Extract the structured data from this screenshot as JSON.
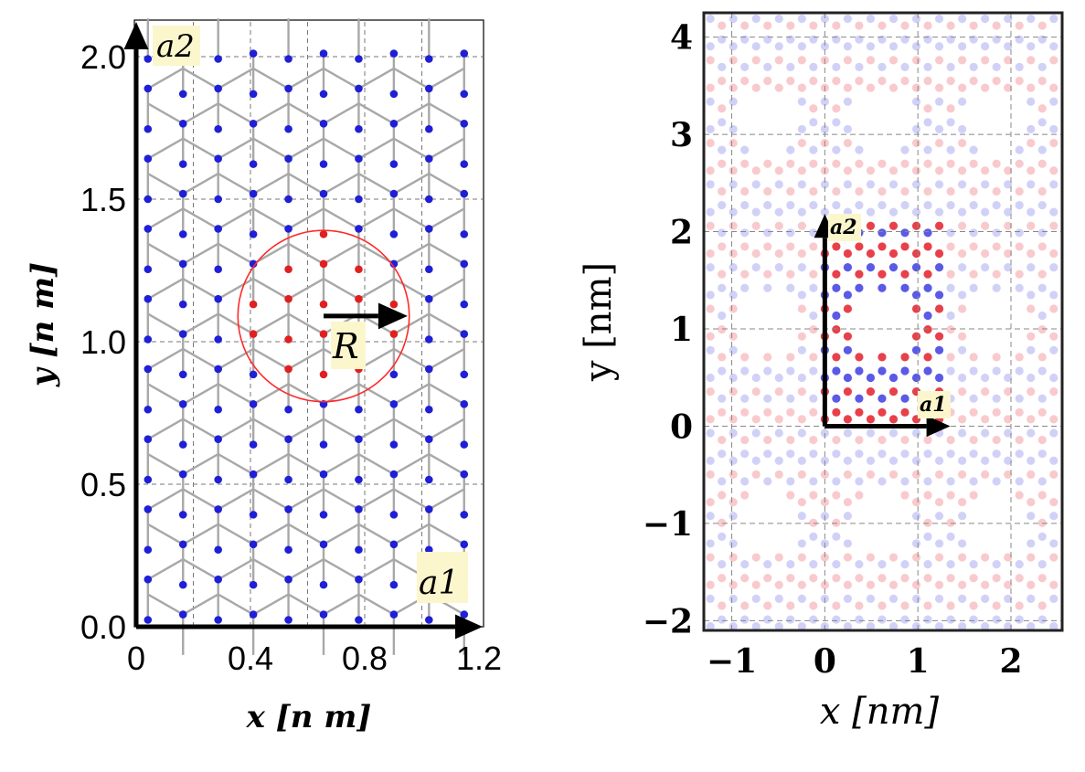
{
  "chart_data": [
    {
      "type": "scatter",
      "description_kind": "honeycomb-lattice",
      "xlabel": "x [n m]",
      "ylabel": "y [n m]",
      "xlim": [
        0,
        1.2
      ],
      "ylim": [
        0,
        2.05
      ],
      "xticks": [
        "0",
        "0.4",
        "0.8",
        "1.2"
      ],
      "yticks": [
        "0.0",
        "0.5",
        "1.0",
        "1.5",
        "2.0"
      ],
      "xtick_values": [
        0,
        0.4,
        0.8,
        1.2
      ],
      "ytick_values": [
        0,
        0.5,
        1.0,
        1.5,
        2.0
      ],
      "grid": true,
      "lattice": {
        "bond_length_nm": 0.142,
        "columns_x_nm": [
          0.041,
          0.164,
          0.287,
          0.41,
          0.533,
          0.656,
          0.779,
          0.902,
          1.025,
          1.148
        ],
        "row_spacing_nm": 0.246,
        "row_start_nm": 0.095
      },
      "vectors": [
        {
          "name": "a_1",
          "label": "a1",
          "from": [
            0,
            0
          ],
          "to": [
            1.2,
            0
          ]
        },
        {
          "name": "a_2",
          "label": "a2",
          "from": [
            0,
            0
          ],
          "to": [
            0,
            2.05
          ]
        },
        {
          "name": "R",
          "label": "R",
          "from": [
            0.656,
            1.09
          ],
          "to": [
            0.95,
            1.09
          ]
        }
      ],
      "circle": {
        "center": [
          0.656,
          1.09
        ],
        "radius": 0.3,
        "color": "#ff2a2a"
      },
      "highlight_points": [
        [
          0.533,
          1.157
        ],
        [
          0.779,
          1.157
        ],
        [
          0.656,
          1.232
        ],
        [
          0.41,
          1.09
        ],
        [
          0.902,
          1.09
        ],
        [
          0.533,
          1.013
        ],
        [
          0.779,
          1.013
        ],
        [
          0.656,
          0.948
        ],
        [
          0.41,
          0.948
        ],
        [
          0.902,
          0.948
        ],
        [
          0.656,
          1.37
        ],
        [
          0.779,
          1.3
        ],
        [
          0.533,
          1.3
        ]
      ],
      "colors": {
        "atom": "#1f1fd6",
        "highlight": "#e02020",
        "bond": "#a8a8a8",
        "axes": "#000000"
      }
    },
    {
      "type": "scatter",
      "description_kind": "honeycomb-lattice-supercell",
      "xlabel": "x  [nm]",
      "ylabel": "y  [nm]",
      "xlim": [
        -1.3,
        2.55
      ],
      "ylim": [
        -2.1,
        4.25
      ],
      "xticks": [
        "−1",
        "0",
        "1",
        "2"
      ],
      "yticks": [
        "−2",
        "−1",
        "0",
        "1",
        "2",
        "3",
        "4"
      ],
      "xtick_values": [
        -1,
        0,
        1,
        2
      ],
      "ytick_values": [
        -2,
        -1,
        0,
        1,
        2,
        3,
        4
      ],
      "grid": true,
      "lattice": {
        "bond_length_nm": 0.142,
        "cell_a1_nm": 1.23,
        "cell_a2_nm": 2.05
      },
      "vectors": [
        {
          "name": "a_1",
          "label": "a1",
          "from": [
            0,
            0
          ],
          "to": [
            1.23,
            0
          ]
        },
        {
          "name": "a_2",
          "label": "a2",
          "from": [
            0,
            0
          ],
          "to": [
            0,
            2.05
          ]
        }
      ],
      "colors": {
        "red": "#e8404a",
        "blue": "#5a5ae6",
        "axes": "#222222"
      }
    }
  ]
}
